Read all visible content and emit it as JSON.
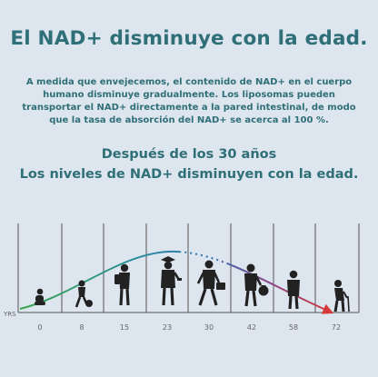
{
  "headline": "El NAD+ disminuye con la edad.",
  "intro": {
    "line1": "A medida que envejecemos, el contenido de NAD+ en el cuerpo",
    "line2": "humano disminuye gradualmente. Los liposomas pueden",
    "line3": "transportar el NAD+ directamente a la pared intestinal, de modo",
    "line4": "que la tasa de absorción del NAD+ se acerca al 100 %."
  },
  "subheading": {
    "line1": "Después de los 30 años",
    "line2": "Los niveles de NAD+ disminuyen con la edad."
  },
  "chart_data": {
    "type": "line",
    "xlabel": "YRS",
    "ylabel": "",
    "title": "",
    "x": [
      0,
      8,
      15,
      23,
      30,
      42,
      58,
      72
    ],
    "x_tick_labels": [
      "0",
      "8",
      "15",
      "23",
      "30",
      "42",
      "58",
      "72"
    ],
    "curve_shape": "bell: rises from age 0, peaks near age 23-30, declines toward age 72",
    "grid": "vertical lines at each age",
    "colors": {
      "rising": "#3aa64a",
      "peak": "#2f6fb3",
      "falling": "#d63a3a"
    }
  },
  "figures": [
    {
      "name": "baby-figure-icon"
    },
    {
      "name": "child-with-ball-figure-icon"
    },
    {
      "name": "student-with-backpack-figure-icon"
    },
    {
      "name": "graduate-figure-icon"
    },
    {
      "name": "worker-with-briefcase-figure-icon"
    },
    {
      "name": "adult-with-money-bag-figure-icon"
    },
    {
      "name": "middle-aged-figure-icon"
    },
    {
      "name": "elderly-with-cane-figure-icon"
    }
  ]
}
